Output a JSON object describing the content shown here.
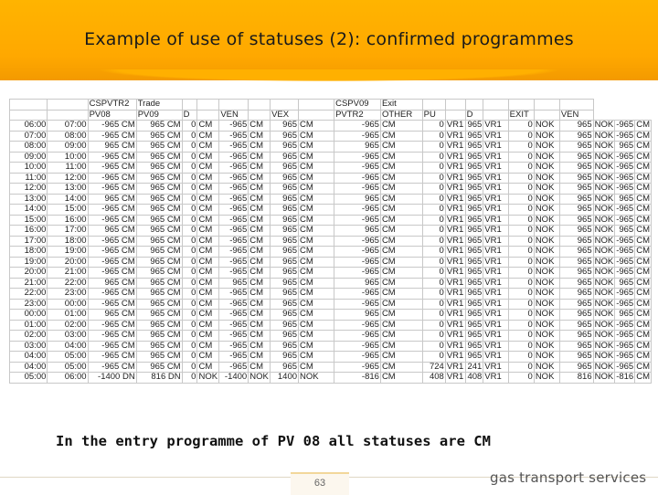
{
  "slide": {
    "title": "Example of use of statuses (2): confirmed programmes",
    "caption": "In the entry programme of PV 08 all statuses are CM",
    "page_number": "63",
    "logo_text": "gas transport services"
  },
  "sheet": {
    "header_top": [
      "",
      "",
      "CSPVTR2",
      "Trade",
      "",
      "",
      "",
      "",
      "",
      "",
      "CSPV09",
      "Exit",
      "",
      "",
      "",
      "",
      "",
      "",
      ""
    ],
    "header_sub": [
      "",
      "",
      "PV08",
      "PV09",
      "D",
      "",
      "VEN",
      "",
      "VEX",
      "",
      "PVTR2",
      "OTHER",
      "PU",
      "",
      "D",
      "",
      "EXIT",
      "",
      "VEN"
    ],
    "rows": [
      [
        "06:00",
        "07:00",
        "-965 CM",
        "965 CM",
        "0 CM",
        "-965 CM",
        "965 CM",
        "-965 CM",
        "0 VR1",
        "965 VR1",
        "0 NOK",
        "965 NOK",
        "-965 CM"
      ],
      [
        "07:00",
        "08:00",
        "-965 CM",
        "965 CM",
        "0 CM",
        "-965 CM",
        "965 CM",
        "-965 CM",
        "0 VR1",
        "965 VR1",
        "0 NOK",
        "965 NOK",
        "-965 CM"
      ],
      [
        "08:00",
        "09:00",
        "965 CM",
        "965 CM",
        "0 CM",
        "-965 CM",
        "965 CM",
        "965 CM",
        "0 VR1",
        "965 VR1",
        "0 NOK",
        "965 NOK",
        "965 CM"
      ],
      [
        "09:00",
        "10:00",
        "-965 CM",
        "965 CM",
        "0 CM",
        "-965 CM",
        "965 CM",
        "-965 CM",
        "0 VR1",
        "965 VR1",
        "0 NOK",
        "965 NOK",
        "-965 CM"
      ],
      [
        "10:00",
        "11:00",
        "-965 CM",
        "965 CM",
        "0 CM",
        "-965 CM",
        "965 CM",
        "-965 CM",
        "0 VR1",
        "965 VR1",
        "0 NOK",
        "965 NOK",
        "-965 CM"
      ],
      [
        "11:00",
        "12:00",
        "-965 CM",
        "965 CM",
        "0 CM",
        "-965 CM",
        "965 CM",
        "-965 CM",
        "0 VR1",
        "965 VR1",
        "0 NOK",
        "965 NOK",
        "-965 CM"
      ],
      [
        "12:00",
        "13:00",
        "-965 CM",
        "965 CM",
        "0 CM",
        "-965 CM",
        "965 CM",
        "-965 CM",
        "0 VR1",
        "965 VR1",
        "0 NOK",
        "965 NOK",
        "-965 CM"
      ],
      [
        "13:00",
        "14:00",
        "965 CM",
        "965 CM",
        "0 CM",
        "-965 CM",
        "965 CM",
        "965 CM",
        "0 VR1",
        "965 VR1",
        "0 NOK",
        "965 NOK",
        "965 CM"
      ],
      [
        "14:00",
        "15:00",
        "-965 CM",
        "965 CM",
        "0 CM",
        "-965 CM",
        "965 CM",
        "-965 CM",
        "0 VR1",
        "965 VR1",
        "0 NOK",
        "965 NOK",
        "-965 CM"
      ],
      [
        "15:00",
        "16:00",
        "-965 CM",
        "965 CM",
        "0 CM",
        "-965 CM",
        "965 CM",
        "-965 CM",
        "0 VR1",
        "965 VR1",
        "0 NOK",
        "965 NOK",
        "-965 CM"
      ],
      [
        "16:00",
        "17:00",
        "965 CM",
        "965 CM",
        "0 CM",
        "-965 CM",
        "965 CM",
        "965 CM",
        "0 VR1",
        "965 VR1",
        "0 NOK",
        "965 NOK",
        "965 CM"
      ],
      [
        "17:00",
        "18:00",
        "-965 CM",
        "965 CM",
        "0 CM",
        "-965 CM",
        "965 CM",
        "-965 CM",
        "0 VR1",
        "965 VR1",
        "0 NOK",
        "965 NOK",
        "-965 CM"
      ],
      [
        "18:00",
        "19:00",
        "-965 CM",
        "965 CM",
        "0 CM",
        "-965 CM",
        "965 CM",
        "-965 CM",
        "0 VR1",
        "965 VR1",
        "0 NOK",
        "965 NOK",
        "-965 CM"
      ],
      [
        "19:00",
        "20:00",
        "-965 CM",
        "965 CM",
        "0 CM",
        "-965 CM",
        "965 CM",
        "-965 CM",
        "0 VR1",
        "965 VR1",
        "0 NOK",
        "965 NOK",
        "-965 CM"
      ],
      [
        "20:00",
        "21:00",
        "-965 CM",
        "965 CM",
        "0 CM",
        "-965 CM",
        "965 CM",
        "-965 CM",
        "0 VR1",
        "965 VR1",
        "0 NOK",
        "965 NOK",
        "-965 CM"
      ],
      [
        "21:00",
        "22:00",
        "965 CM",
        "965 CM",
        "0 CM",
        "965 CM",
        "965 CM",
        "965 CM",
        "0 VR1",
        "965 VR1",
        "0 NOK",
        "965 NOK",
        "965 CM"
      ],
      [
        "22:00",
        "23:00",
        "-965 CM",
        "965 CM",
        "0 CM",
        "-965 CM",
        "965 CM",
        "-965 CM",
        "0 VR1",
        "965 VR1",
        "0 NOK",
        "965 NOK",
        "-965 CM"
      ],
      [
        "23:00",
        "00:00",
        "-965 CM",
        "965 CM",
        "0 CM",
        "-965 CM",
        "965 CM",
        "-965 CM",
        "0 VR1",
        "965 VR1",
        "0 NOK",
        "965 NOK",
        "-965 CM"
      ],
      [
        "00:00",
        "01:00",
        "965 CM",
        "965 CM",
        "0 CM",
        "-965 CM",
        "965 CM",
        "965 CM",
        "0 VR1",
        "965 VR1",
        "0 NOK",
        "965 NOK",
        "965 CM"
      ],
      [
        "01:00",
        "02:00",
        "-965 CM",
        "965 CM",
        "0 CM",
        "-965 CM",
        "965 CM",
        "-965 CM",
        "0 VR1",
        "965 VR1",
        "0 NOK",
        "965 NOK",
        "-965 CM"
      ],
      [
        "02:00",
        "03:00",
        "-965 CM",
        "965 CM",
        "0 CM",
        "-965 CM",
        "965 CM",
        "-965 CM",
        "0 VR1",
        "965 VR1",
        "0 NOK",
        "965 NOK",
        "-965 CM"
      ],
      [
        "03:00",
        "04:00",
        "-965 CM",
        "965 CM",
        "0 CM",
        "-965 CM",
        "965 CM",
        "-965 CM",
        "0 VR1",
        "965 VR1",
        "0 NOK",
        "965 NOK",
        "-965 CM"
      ],
      [
        "04:00",
        "05:00",
        "-965 CM",
        "965 CM",
        "0 CM",
        "-965 CM",
        "965 CM",
        "-965 CM",
        "0 VR1",
        "965 VR1",
        "0 NOK",
        "965 NOK",
        "-965 CM"
      ],
      [
        "04:00",
        "05:00",
        "-965 CM",
        "965 CM",
        "0 CM",
        "-965 CM",
        "965 CM",
        "-965 CM",
        "724 VR1",
        "241 VR1",
        "0 NOK",
        "965 NOK",
        "-965 CM"
      ],
      [
        "05:00",
        "06:00",
        "-1400 DN",
        "816 DN",
        "0 NOK",
        "-1400 NOK",
        "1400 NOK",
        "-816 CM",
        "408 VR1",
        "408 VR1",
        "0 NOK",
        "816 NOK",
        "-816 CM"
      ]
    ]
  }
}
